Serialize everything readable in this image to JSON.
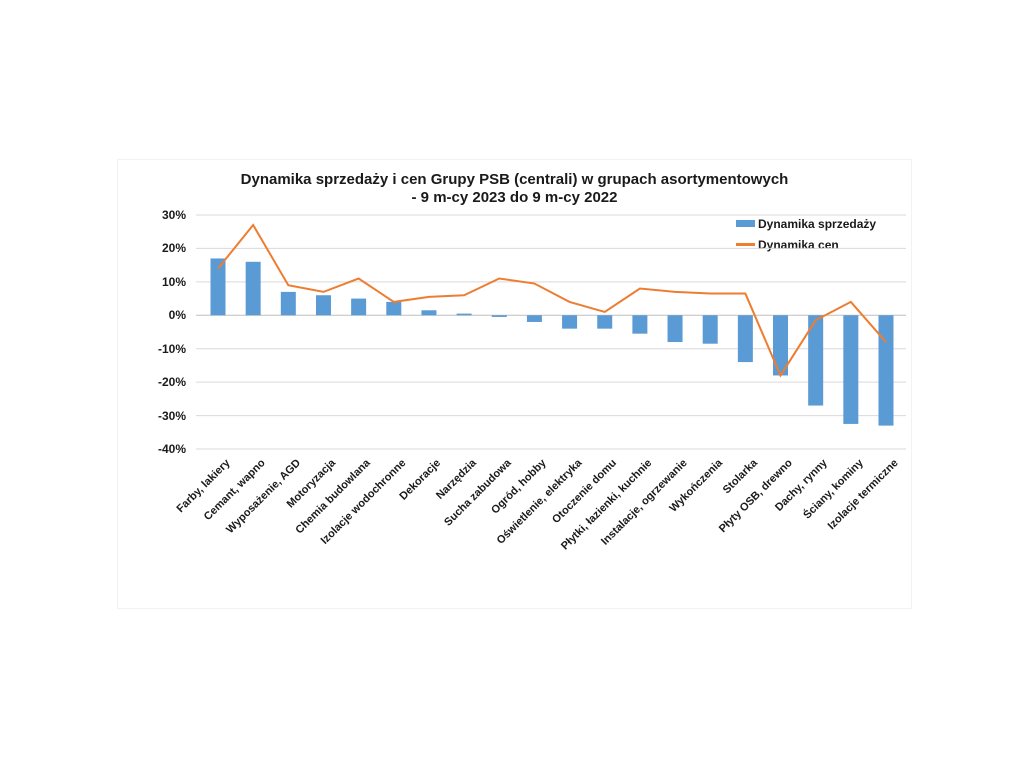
{
  "chart": {
    "title_line1": "Dynamika sprzedaży i cen Grupy PSB (centrali) w grupach asortymentowych",
    "title_line2": "- 9 m-cy 2023 do 9 m-cy 2022",
    "legend": [
      "Dynamika sprzedaży",
      "Dynamika cen"
    ],
    "colors": {
      "bar": "#5B9BD5",
      "line": "#ED7D31",
      "gridline": "#D9D9D9",
      "zero_axis": "#BFBFBF",
      "text": "#1a1a1a"
    }
  },
  "chart_data": {
    "type": "bar",
    "title": "Dynamika sprzedaży i cen Grupy PSB (centrali) w grupach asortymentowych - 9 m-cy 2023 do 9 m-cy 2022",
    "categories": [
      "Farby, lakiery",
      "Cemant, wapno",
      "Wyposażenie, AGD",
      "Motoryzacja",
      "Chemia budowlana",
      "Izolacje wodochronne",
      "Dekoracje",
      "Narzędzia",
      "Sucha zabudowa",
      "Ogród, hobby",
      "Oświetlenie, elektryka",
      "Otoczenie domu",
      "Płytki, łazienki, kuchnie",
      "Instalacje, ogrzewanie",
      "Wykończenia",
      "Stolarka",
      "Płyty OSB, drewno",
      "Dachy, rynny",
      "Ściany, kominy",
      "Izolacje termiczne"
    ],
    "series": [
      {
        "name": "Dynamika sprzedaży",
        "render": "bar",
        "values": [
          17,
          16,
          7,
          6,
          5,
          4,
          1.5,
          0.5,
          -0.5,
          -2,
          -4,
          -4,
          -5.5,
          -8,
          -8.5,
          -14,
          -18,
          -27,
          -32.5,
          -33
        ]
      },
      {
        "name": "Dynamika cen",
        "render": "line",
        "values": [
          14,
          27,
          9,
          7,
          11,
          4,
          5.5,
          6,
          11,
          9.5,
          4,
          1,
          8,
          7,
          6.5,
          6.5,
          -18,
          -1.5,
          4,
          -8
        ]
      }
    ],
    "xlabel": "",
    "ylabel": "",
    "ylim": [
      -40,
      30
    ],
    "y_tick_values": [
      30,
      20,
      10,
      0,
      -10,
      -20,
      -30,
      -40
    ],
    "y_tick_suffix": "%",
    "grid": "horizontal",
    "legend_position": "top-right"
  }
}
